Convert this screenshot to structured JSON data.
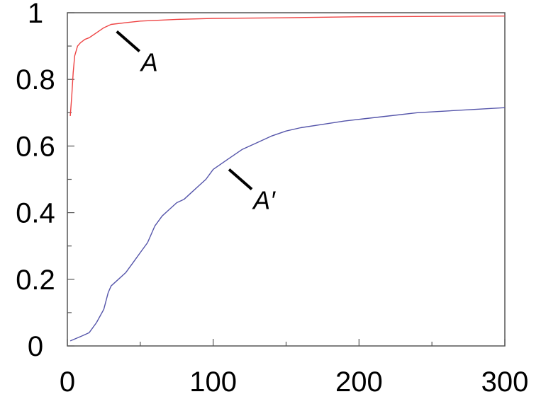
{
  "chart_data": {
    "type": "line",
    "title": "",
    "xlabel": "",
    "ylabel": "",
    "xlim": [
      0,
      300
    ],
    "ylim": [
      0,
      1
    ],
    "grid": false,
    "x_ticks": [
      "0",
      "100",
      "200",
      "300"
    ],
    "y_ticks": [
      "0",
      "0.2",
      "0.4",
      "0.6",
      "0.8",
      "1"
    ],
    "series": [
      {
        "label": "A",
        "color": "#ee4444",
        "points": [
          [
            2,
            0.69
          ],
          [
            3,
            0.75
          ],
          [
            4,
            0.82
          ],
          [
            5,
            0.87
          ],
          [
            7,
            0.9
          ],
          [
            9,
            0.91
          ],
          [
            12,
            0.92
          ],
          [
            15,
            0.925
          ],
          [
            20,
            0.94
          ],
          [
            25,
            0.955
          ],
          [
            30,
            0.965
          ],
          [
            40,
            0.97
          ],
          [
            50,
            0.975
          ],
          [
            75,
            0.98
          ],
          [
            100,
            0.983
          ],
          [
            150,
            0.985
          ],
          [
            200,
            0.988
          ],
          [
            250,
            0.989
          ],
          [
            300,
            0.99
          ]
        ]
      },
      {
        "label": "A′",
        "color": "#5555aa",
        "points": [
          [
            2,
            0.015
          ],
          [
            10,
            0.03
          ],
          [
            15,
            0.04
          ],
          [
            20,
            0.07
          ],
          [
            25,
            0.11
          ],
          [
            28,
            0.16
          ],
          [
            30,
            0.18
          ],
          [
            35,
            0.2
          ],
          [
            40,
            0.22
          ],
          [
            45,
            0.25
          ],
          [
            50,
            0.28
          ],
          [
            55,
            0.31
          ],
          [
            60,
            0.36
          ],
          [
            65,
            0.39
          ],
          [
            70,
            0.41
          ],
          [
            75,
            0.43
          ],
          [
            80,
            0.44
          ],
          [
            85,
            0.46
          ],
          [
            90,
            0.48
          ],
          [
            95,
            0.5
          ],
          [
            100,
            0.53
          ],
          [
            110,
            0.56
          ],
          [
            120,
            0.59
          ],
          [
            130,
            0.61
          ],
          [
            140,
            0.63
          ],
          [
            150,
            0.645
          ],
          [
            160,
            0.655
          ],
          [
            175,
            0.665
          ],
          [
            190,
            0.675
          ],
          [
            200,
            0.68
          ],
          [
            220,
            0.69
          ],
          [
            240,
            0.7
          ],
          [
            260,
            0.705
          ],
          [
            280,
            0.71
          ],
          [
            300,
            0.715
          ]
        ]
      }
    ],
    "annotations": [
      {
        "text": "A",
        "series": 0,
        "at_x": 30
      },
      {
        "text": "A′",
        "series": 1,
        "at_x": 107
      }
    ]
  }
}
